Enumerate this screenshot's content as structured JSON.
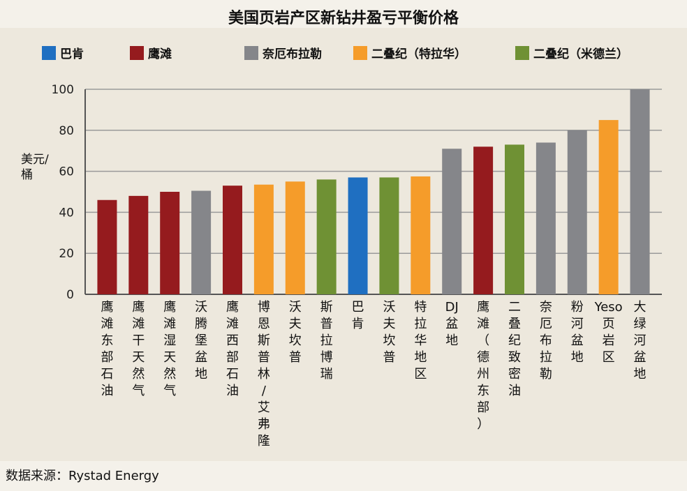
{
  "title": "美国页岩产区新钻井盈亏平衡价格",
  "source": "数据来源：Rystad Energy",
  "colors": {
    "巴肯": "#1f6fc1",
    "鹰滩": "#951b1e",
    "奈厄布拉勒": "#85868a",
    "二叠纪（特拉华）": "#f59c2a",
    "二叠纪（米德兰）": "#6f9134"
  },
  "legend": [
    {
      "label": "巴肯",
      "key": "巴肯"
    },
    {
      "label": "鹰滩",
      "key": "鹰滩"
    },
    {
      "label": "奈厄布拉勒",
      "key": "奈厄布拉勒"
    },
    {
      "label": "二叠纪（特拉华）",
      "key": "二叠纪（特拉华）"
    },
    {
      "label": "二叠纪（米德兰）",
      "key": "二叠纪（米德兰）"
    }
  ],
  "chart_data": {
    "type": "bar",
    "title": "美国页岩产区新钻井盈亏平衡价格",
    "ylabel": "美元/桶",
    "xlabel": "",
    "ylim": [
      0,
      100
    ],
    "yticks": [
      0,
      20,
      40,
      60,
      80,
      100
    ],
    "grid": true,
    "legend_position": "top",
    "categories": [
      "鹰滩东部石油",
      "鹰滩干天然气",
      "鹰滩湿天然气",
      "沃腾堡盆地",
      "鹰滩西部石油",
      "博恩斯普林/艾弗隆",
      "沃夫坎普",
      "斯普拉博瑞",
      "巴肯",
      "沃夫坎普",
      "特拉华地区",
      "DJ盆地",
      "鹰滩（德州东部）",
      "二叠纪致密油",
      "奈厄布拉勒",
      "粉河盆地",
      "Yeso页岩区",
      "大绿河盆地"
    ],
    "values": [
      46,
      48,
      50,
      50.5,
      53,
      53.5,
      55,
      56,
      57,
      57,
      57.5,
      71,
      72,
      73,
      74,
      80,
      85,
      100
    ],
    "groups": [
      "鹰滩",
      "鹰滩",
      "鹰滩",
      "奈厄布拉勒",
      "鹰滩",
      "二叠纪（特拉华）",
      "二叠纪（特拉华）",
      "二叠纪（米德兰）",
      "巴肯",
      "二叠纪（米德兰）",
      "二叠纪（特拉华）",
      "奈厄布拉勒",
      "鹰滩",
      "二叠纪（米德兰）",
      "奈厄布拉勒",
      "奈厄布拉勒",
      "二叠纪（特拉华）",
      "奈厄布拉勒"
    ]
  }
}
